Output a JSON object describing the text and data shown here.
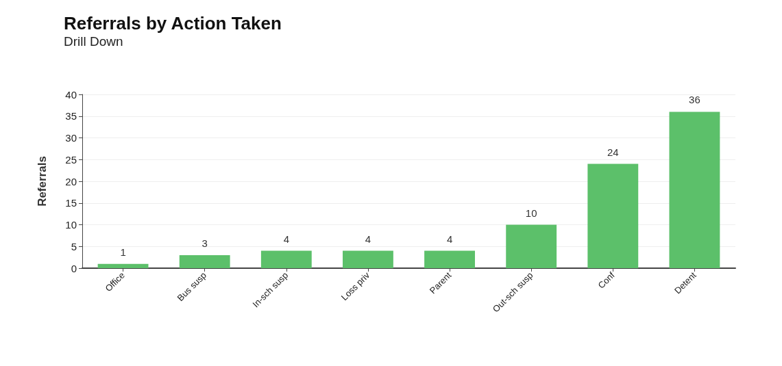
{
  "chart_data": {
    "type": "bar",
    "title": "Referrals by Action Taken",
    "subtitle": "Drill Down",
    "ylabel": "Referrals",
    "categories": [
      "Office",
      "Bus susp",
      "In-sch susp",
      "Loss priv",
      "Parent",
      "Out-sch susp",
      "Conf",
      "Detent"
    ],
    "values": [
      1,
      3,
      4,
      4,
      4,
      10,
      24,
      36
    ],
    "color": "#5cc06a",
    "ylim": [
      0,
      40
    ],
    "yticks": [
      0,
      5,
      10,
      15,
      20,
      25,
      30,
      35,
      40
    ],
    "grid": "y",
    "data_labels": true
  }
}
